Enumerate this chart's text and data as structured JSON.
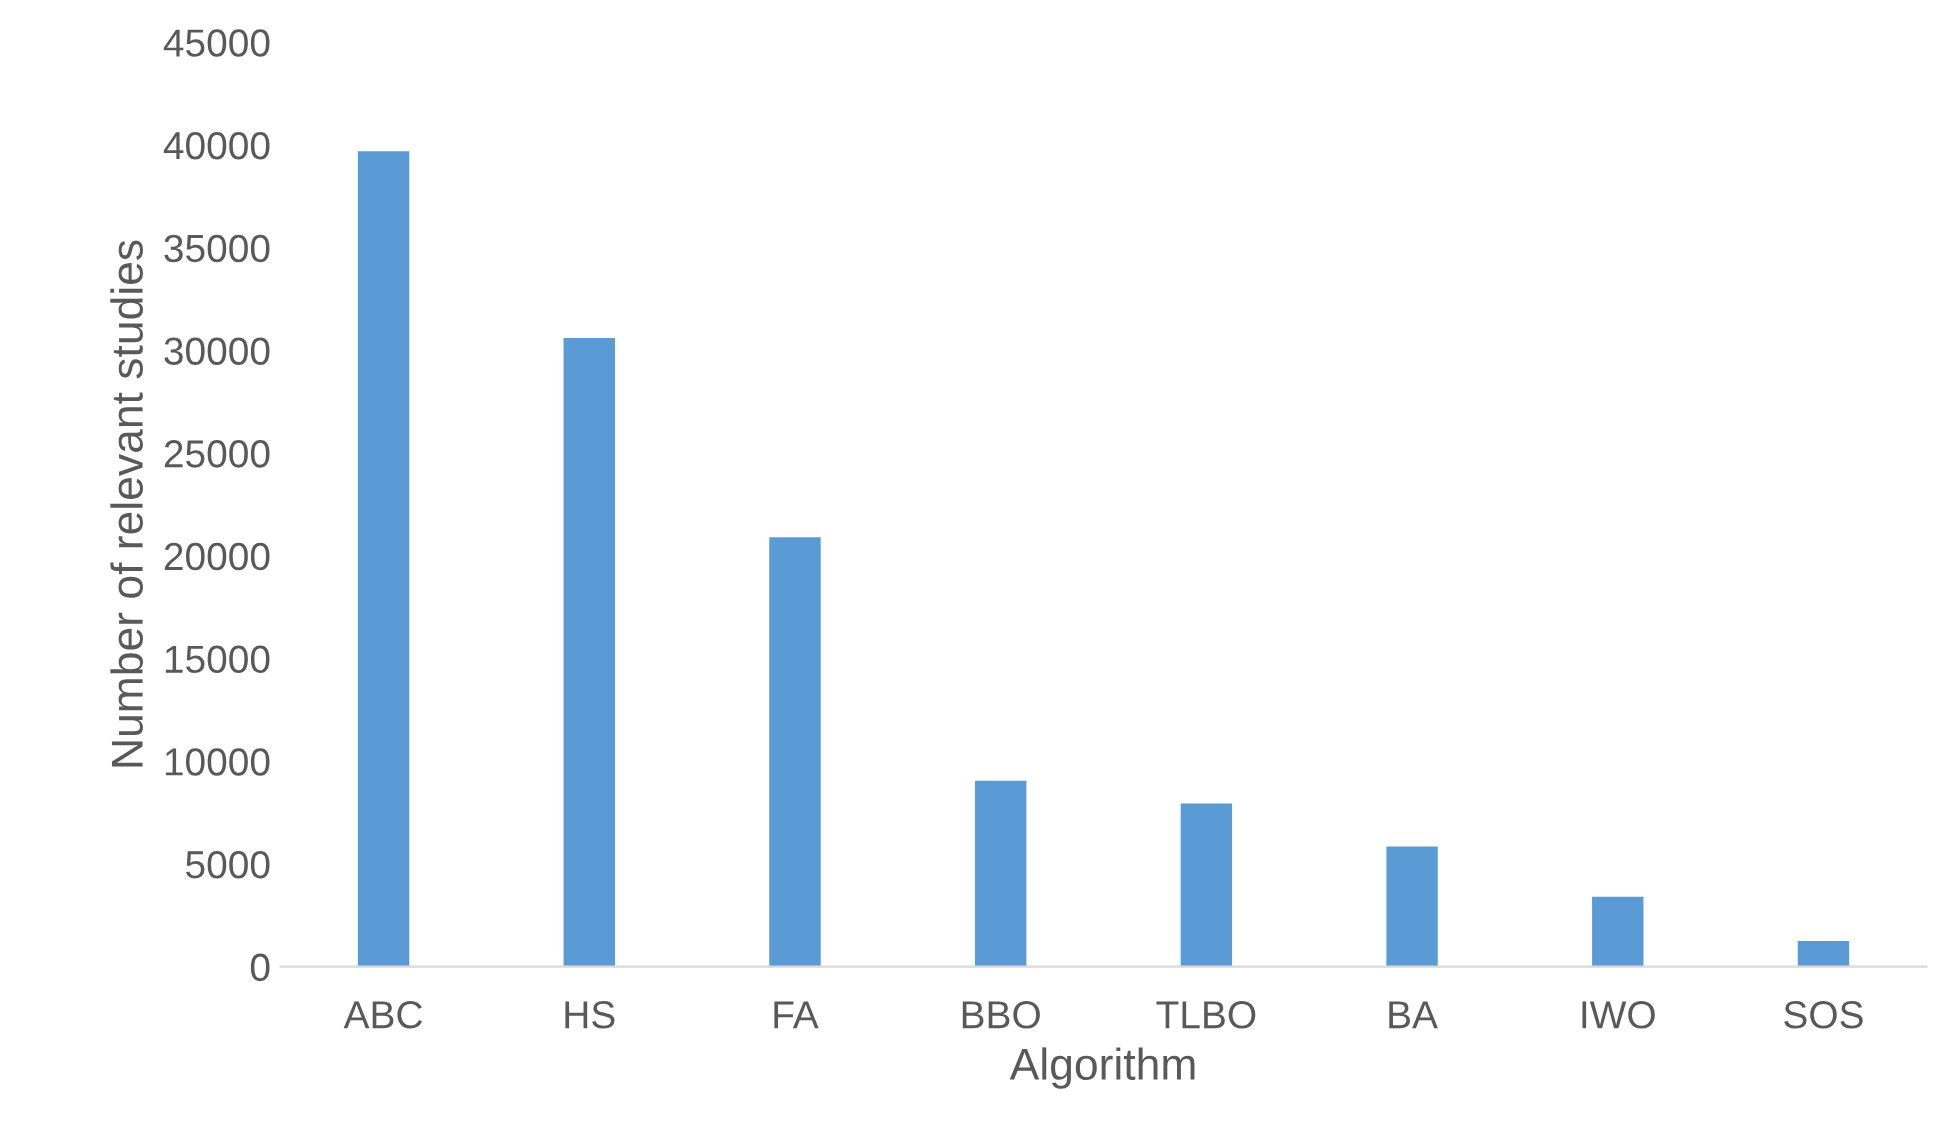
{
  "chart_data": {
    "type": "bar",
    "xlabel": "Algorithm",
    "ylabel": "Number of relevant studies",
    "categories": [
      "ABC",
      "HS",
      "FA",
      "BBO",
      "TLBO",
      "BA",
      "IWO",
      "SOS"
    ],
    "values": [
      39700,
      30600,
      20900,
      9050,
      7950,
      5850,
      3400,
      1250
    ],
    "color": "#5b9bd5",
    "ylim": [
      0,
      45000
    ],
    "yticks": [
      0,
      5000,
      10000,
      15000,
      20000,
      25000,
      30000,
      35000,
      40000,
      45000
    ],
    "grid": false,
    "legend": false
  }
}
